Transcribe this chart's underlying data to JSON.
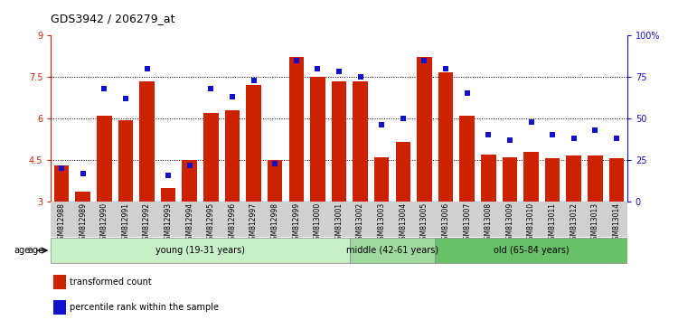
{
  "title": "GDS3942 / 206279_at",
  "samples": [
    "GSM812988",
    "GSM812989",
    "GSM812990",
    "GSM812991",
    "GSM812992",
    "GSM812993",
    "GSM812994",
    "GSM812995",
    "GSM812996",
    "GSM812997",
    "GSM812998",
    "GSM812999",
    "GSM813000",
    "GSM813001",
    "GSM813002",
    "GSM813003",
    "GSM813004",
    "GSM813005",
    "GSM813006",
    "GSM813007",
    "GSM813008",
    "GSM813009",
    "GSM813010",
    "GSM813011",
    "GSM813012",
    "GSM813013",
    "GSM813014"
  ],
  "bar_values": [
    4.3,
    3.35,
    6.1,
    5.95,
    7.35,
    3.5,
    4.5,
    6.2,
    6.3,
    7.2,
    4.5,
    8.2,
    7.5,
    7.35,
    7.35,
    4.6,
    5.15,
    8.2,
    7.65,
    6.1,
    4.7,
    4.6,
    4.8,
    4.55,
    4.65,
    4.65,
    4.55
  ],
  "percentile_values": [
    20,
    17,
    68,
    62,
    80,
    16,
    22,
    68,
    63,
    73,
    23,
    85,
    80,
    78,
    75,
    46,
    50,
    85,
    80,
    65,
    40,
    37,
    48,
    40,
    38,
    43,
    38
  ],
  "groups": [
    {
      "label": "young (19-31 years)",
      "start": 0,
      "end": 14,
      "color": "#c8f0c8"
    },
    {
      "label": "middle (42-61 years)",
      "start": 14,
      "end": 18,
      "color": "#a0d8a0"
    },
    {
      "label": "old (65-84 years)",
      "start": 18,
      "end": 27,
      "color": "#68c068"
    }
  ],
  "ylim_left": [
    3.0,
    9.0
  ],
  "ylim_right": [
    0,
    100
  ],
  "yticks_left": [
    3.0,
    4.5,
    6.0,
    7.5,
    9.0
  ],
  "ytick_labels_left": [
    "3",
    "4.5",
    "6",
    "7.5",
    "9"
  ],
  "yticks_right": [
    0,
    25,
    50,
    75,
    100
  ],
  "ytick_labels_right": [
    "0",
    "25",
    "50",
    "75",
    "100%"
  ],
  "bar_color": "#cc2200",
  "dot_color": "#1111cc",
  "bg_color": "#ffffff",
  "plot_bg": "#ffffff",
  "age_label": "age",
  "legend_items": [
    {
      "color": "#cc2200",
      "label": "transformed count"
    },
    {
      "color": "#1111cc",
      "label": "percentile rank within the sample"
    }
  ]
}
